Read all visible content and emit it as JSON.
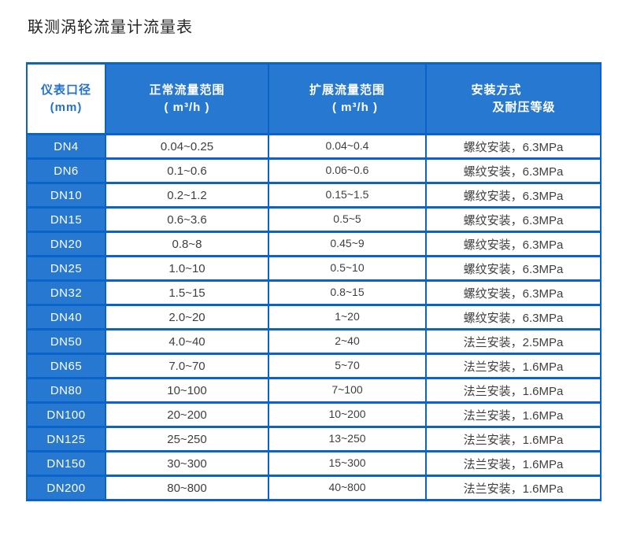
{
  "page": {
    "title": "联测涡轮流量计流量表"
  },
  "colors": {
    "grid_border_blue": "#0a63c8",
    "cell_fill_blue": "#2678d1",
    "header_corner_text_blue": "#2172cd",
    "data_text": "#3f3f3f"
  },
  "header": {
    "col1_line1": "仪表口径",
    "col1_line2": "(mm)",
    "col2_line1": "正常流量范围",
    "col2_line2": "( m³/h )",
    "col3_line1": "扩展流量范围",
    "col3_line2": "( m³/h )",
    "col4_line1": "安装方式",
    "col4_line2": "及耐压等级"
  },
  "chart_data": {
    "type": "table",
    "title": "联测涡轮流量计流量表",
    "columns": [
      "仪表口径 (mm)",
      "正常流量范围 ( m³/h )",
      "扩展流量范围 ( m³/h )",
      "安装方式 及耐压等级"
    ],
    "rows": [
      [
        "DN4",
        "0.04~0.25",
        "0.04~0.4",
        "螺纹安装，6.3MPa"
      ],
      [
        "DN6",
        "0.1~0.6",
        "0.06~0.6",
        "螺纹安装，6.3MPa"
      ],
      [
        "DN10",
        "0.2~1.2",
        "0.15~1.5",
        "螺纹安装，6.3MPa"
      ],
      [
        "DN15",
        "0.6~3.6",
        "0.5~5",
        "螺纹安装，6.3MPa"
      ],
      [
        "DN20",
        "0.8~8",
        "0.45~9",
        "螺纹安装，6.3MPa"
      ],
      [
        "DN25",
        "1.0~10",
        "0.5~10",
        "螺纹安装，6.3MPa"
      ],
      [
        "DN32",
        "1.5~15",
        "0.8~15",
        "螺纹安装，6.3MPa"
      ],
      [
        "DN40",
        "2.0~20",
        "1~20",
        "螺纹安装，6.3MPa"
      ],
      [
        "DN50",
        "4.0~40",
        "2~40",
        "法兰安装，2.5MPa"
      ],
      [
        "DN65",
        "7.0~70",
        "5~70",
        "法兰安装，1.6MPa"
      ],
      [
        "DN80",
        "10~100",
        "7~100",
        "法兰安装，1.6MPa"
      ],
      [
        "DN100",
        "20~200",
        "10~200",
        "法兰安装，1.6MPa"
      ],
      [
        "DN125",
        "25~250",
        "13~250",
        "法兰安装，1.6MPa"
      ],
      [
        "DN150",
        "30~300",
        "15~300",
        "法兰安装，1.6MPa"
      ],
      [
        "DN200",
        "80~800",
        "40~800",
        "法兰安装，1.6MPa"
      ]
    ]
  }
}
